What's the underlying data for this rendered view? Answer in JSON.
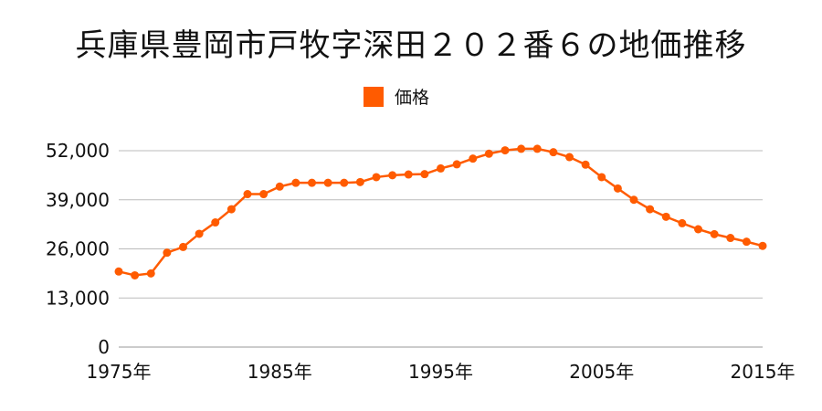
{
  "title": "兵庫県豊岡市戸牧字深田２０２番６の地価推移",
  "legend": {
    "label": "価格"
  },
  "colors": {
    "series": "#ff5b00",
    "grid": "#bbbbbb"
  },
  "chart_data": {
    "type": "line",
    "title": "兵庫県豊岡市戸牧字深田２０２番６の地価推移",
    "xlabel": "",
    "ylabel": "",
    "ylim": [
      0,
      52000
    ],
    "grid": true,
    "legend_position": "top-center",
    "y_ticks": [
      "0",
      "13,000",
      "26,000",
      "39,000",
      "52,000"
    ],
    "x_tick_labels": [
      {
        "year": 1975,
        "label": "1975年"
      },
      {
        "year": 1985,
        "label": "1985年"
      },
      {
        "year": 1995,
        "label": "1995年"
      },
      {
        "year": 2005,
        "label": "2005年"
      },
      {
        "year": 2015,
        "label": "2015年"
      }
    ],
    "x": [
      1975,
      1976,
      1977,
      1978,
      1979,
      1980,
      1981,
      1982,
      1983,
      1984,
      1985,
      1986,
      1987,
      1988,
      1989,
      1990,
      1991,
      1992,
      1993,
      1994,
      1995,
      1996,
      1997,
      1998,
      1999,
      2000,
      2001,
      2002,
      2003,
      2004,
      2005,
      2006,
      2007,
      2008,
      2009,
      2010,
      2011,
      2012,
      2013,
      2014,
      2015
    ],
    "series": [
      {
        "name": "価格",
        "values": [
          20000,
          19000,
          19500,
          25000,
          26500,
          30000,
          33000,
          36500,
          40500,
          40500,
          42500,
          43500,
          43500,
          43500,
          43500,
          43700,
          45000,
          45500,
          45700,
          45800,
          47300,
          48400,
          49900,
          51200,
          52100,
          52500,
          52500,
          51600,
          50300,
          48300,
          45000,
          42000,
          39000,
          36500,
          34500,
          32800,
          31200,
          29900,
          28900,
          27900,
          26800
        ]
      }
    ]
  }
}
